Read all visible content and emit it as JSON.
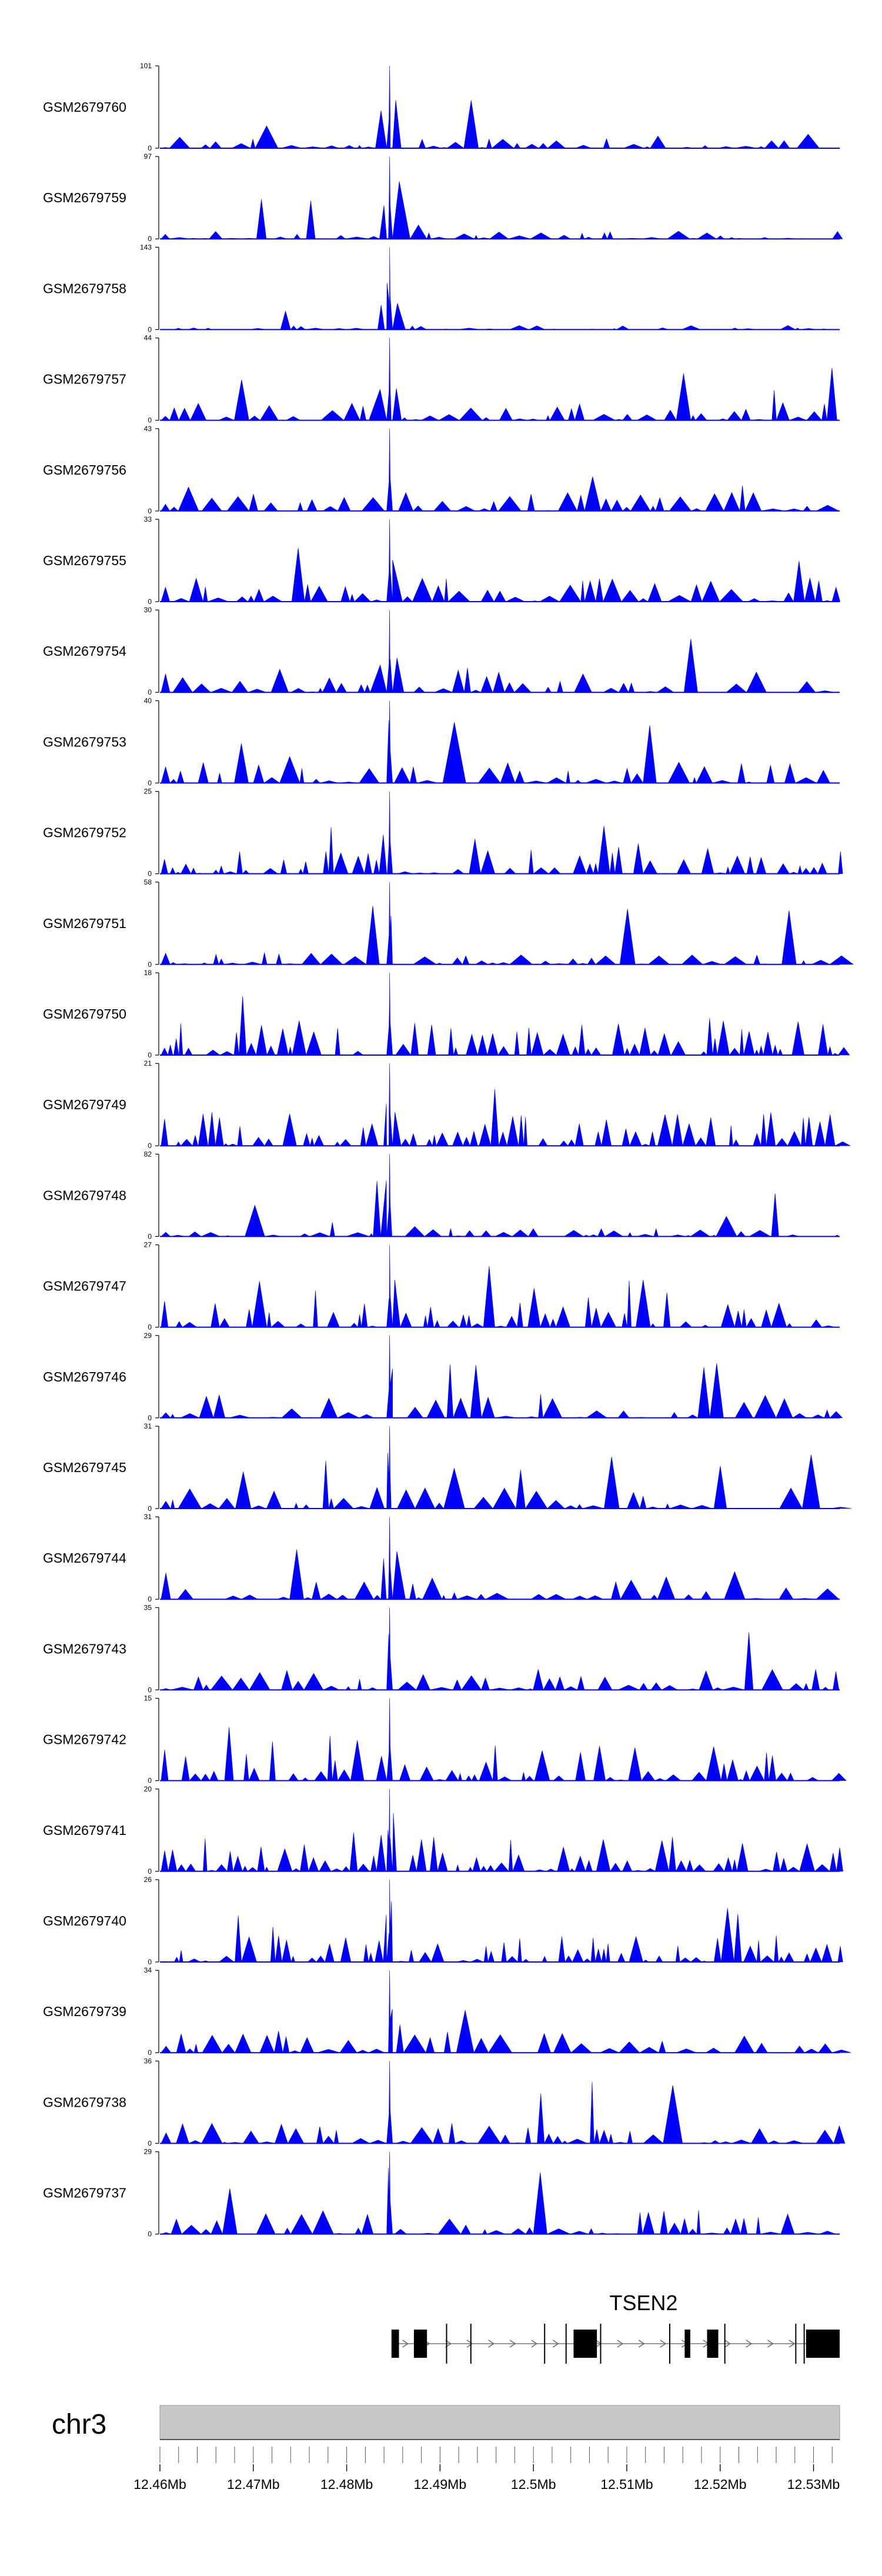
{
  "chart_data": {
    "type": "area",
    "title": "",
    "colors": {
      "signal": "#0000ff",
      "axis": "#000000",
      "ideogram": "#c8c8c8",
      "gene": "#000000"
    },
    "chromosome": {
      "name": "chr3",
      "xlim_mb": [
        12.46,
        12.5328
      ]
    },
    "tracks": [
      {
        "name": "GSM2679760",
        "ymax": 101,
        "ymin": 0,
        "peak_x": 12.4846,
        "baseline": 0.12,
        "seed": 11
      },
      {
        "name": "GSM2679759",
        "ymax": 97,
        "ymin": 0,
        "peak_x": 12.4846,
        "baseline": 0.1,
        "seed": 23
      },
      {
        "name": "GSM2679758",
        "ymax": 143,
        "ymin": 0,
        "peak_x": 12.4846,
        "baseline": 0.05,
        "seed": 37
      },
      {
        "name": "GSM2679757",
        "ymax": 44,
        "ymin": 0,
        "peak_x": 12.4846,
        "baseline": 0.22,
        "seed": 41
      },
      {
        "name": "GSM2679756",
        "ymax": 43,
        "ymin": 0,
        "peak_x": 12.4846,
        "baseline": 0.24,
        "seed": 53
      },
      {
        "name": "GSM2679755",
        "ymax": 33,
        "ymin": 0,
        "peak_x": 12.4846,
        "baseline": 0.3,
        "seed": 61
      },
      {
        "name": "GSM2679754",
        "ymax": 30,
        "ymin": 0,
        "peak_x": 12.4846,
        "baseline": 0.28,
        "seed": 73
      },
      {
        "name": "GSM2679753",
        "ymax": 40,
        "ymin": 0,
        "peak_x": 12.4846,
        "baseline": 0.26,
        "seed": 89
      },
      {
        "name": "GSM2679752",
        "ymax": 25,
        "ymin": 0,
        "peak_x": 12.4846,
        "baseline": 0.34,
        "seed": 97
      },
      {
        "name": "GSM2679751",
        "ymax": 58,
        "ymin": 0,
        "peak_x": 12.4846,
        "baseline": 0.14,
        "seed": 101
      },
      {
        "name": "GSM2679750",
        "ymax": 18,
        "ymin": 0,
        "peak_x": 12.4846,
        "baseline": 0.45,
        "seed": 113
      },
      {
        "name": "GSM2679749",
        "ymax": 21,
        "ymin": 0,
        "peak_x": 12.4846,
        "baseline": 0.42,
        "seed": 127
      },
      {
        "name": "GSM2679748",
        "ymax": 82,
        "ymin": 0,
        "peak_x": 12.4846,
        "baseline": 0.1,
        "seed": 131
      },
      {
        "name": "GSM2679747",
        "ymax": 27,
        "ymin": 0,
        "peak_x": 12.4846,
        "baseline": 0.32,
        "seed": 139
      },
      {
        "name": "GSM2679746",
        "ymax": 29,
        "ymin": 0,
        "peak_x": 12.4846,
        "baseline": 0.3,
        "seed": 149
      },
      {
        "name": "GSM2679745",
        "ymax": 31,
        "ymin": 0,
        "peak_x": 12.4846,
        "baseline": 0.28,
        "seed": 157
      },
      {
        "name": "GSM2679744",
        "ymax": 31,
        "ymin": 0,
        "peak_x": 12.4846,
        "baseline": 0.28,
        "seed": 163
      },
      {
        "name": "GSM2679743",
        "ymax": 35,
        "ymin": 0,
        "peak_x": 12.4846,
        "baseline": 0.26,
        "seed": 173
      },
      {
        "name": "GSM2679742",
        "ymax": 15,
        "ymin": 0,
        "peak_x": 12.4846,
        "baseline": 0.5,
        "seed": 181
      },
      {
        "name": "GSM2679741",
        "ymax": 20,
        "ymin": 0,
        "peak_x": 12.4846,
        "baseline": 0.42,
        "seed": 191
      },
      {
        "name": "GSM2679740",
        "ymax": 26,
        "ymin": 0,
        "peak_x": 12.4846,
        "baseline": 0.32,
        "seed": 199
      },
      {
        "name": "GSM2679739",
        "ymax": 34,
        "ymin": 0,
        "peak_x": 12.4846,
        "baseline": 0.27,
        "seed": 211
      },
      {
        "name": "GSM2679738",
        "ymax": 36,
        "ymin": 0,
        "peak_x": 12.4846,
        "baseline": 0.25,
        "seed": 223
      },
      {
        "name": "GSM2679737",
        "ymax": 29,
        "ymin": 0,
        "peak_x": 12.4846,
        "baseline": 0.3,
        "seed": 227
      }
    ],
    "gene": {
      "name": "TSEN2",
      "strand": "+",
      "start_mb": 12.4848,
      "end_mb": 12.5328,
      "exons_mb": [
        [
          12.4848,
          12.4856
        ],
        [
          12.4872,
          12.4886
        ],
        [
          12.5043,
          12.5068
        ],
        [
          12.5162,
          12.5168
        ],
        [
          12.5186,
          12.5198
        ],
        [
          12.5292,
          12.5328
        ]
      ],
      "utr_ticks_mb": [
        12.4907,
        12.4933,
        12.5012,
        12.5035,
        12.5072,
        12.5146,
        12.5205,
        12.5281,
        12.529
      ]
    },
    "axis": {
      "tick_labels": [
        "12.46Mb",
        "12.47Mb",
        "12.48Mb",
        "12.49Mb",
        "12.5Mb",
        "12.51Mb",
        "12.52Mb",
        "12.53Mb"
      ],
      "tick_values_mb": [
        12.46,
        12.47,
        12.48,
        12.49,
        12.5,
        12.51,
        12.52,
        12.53
      ],
      "minor_tick_step_mb": 0.002
    }
  }
}
